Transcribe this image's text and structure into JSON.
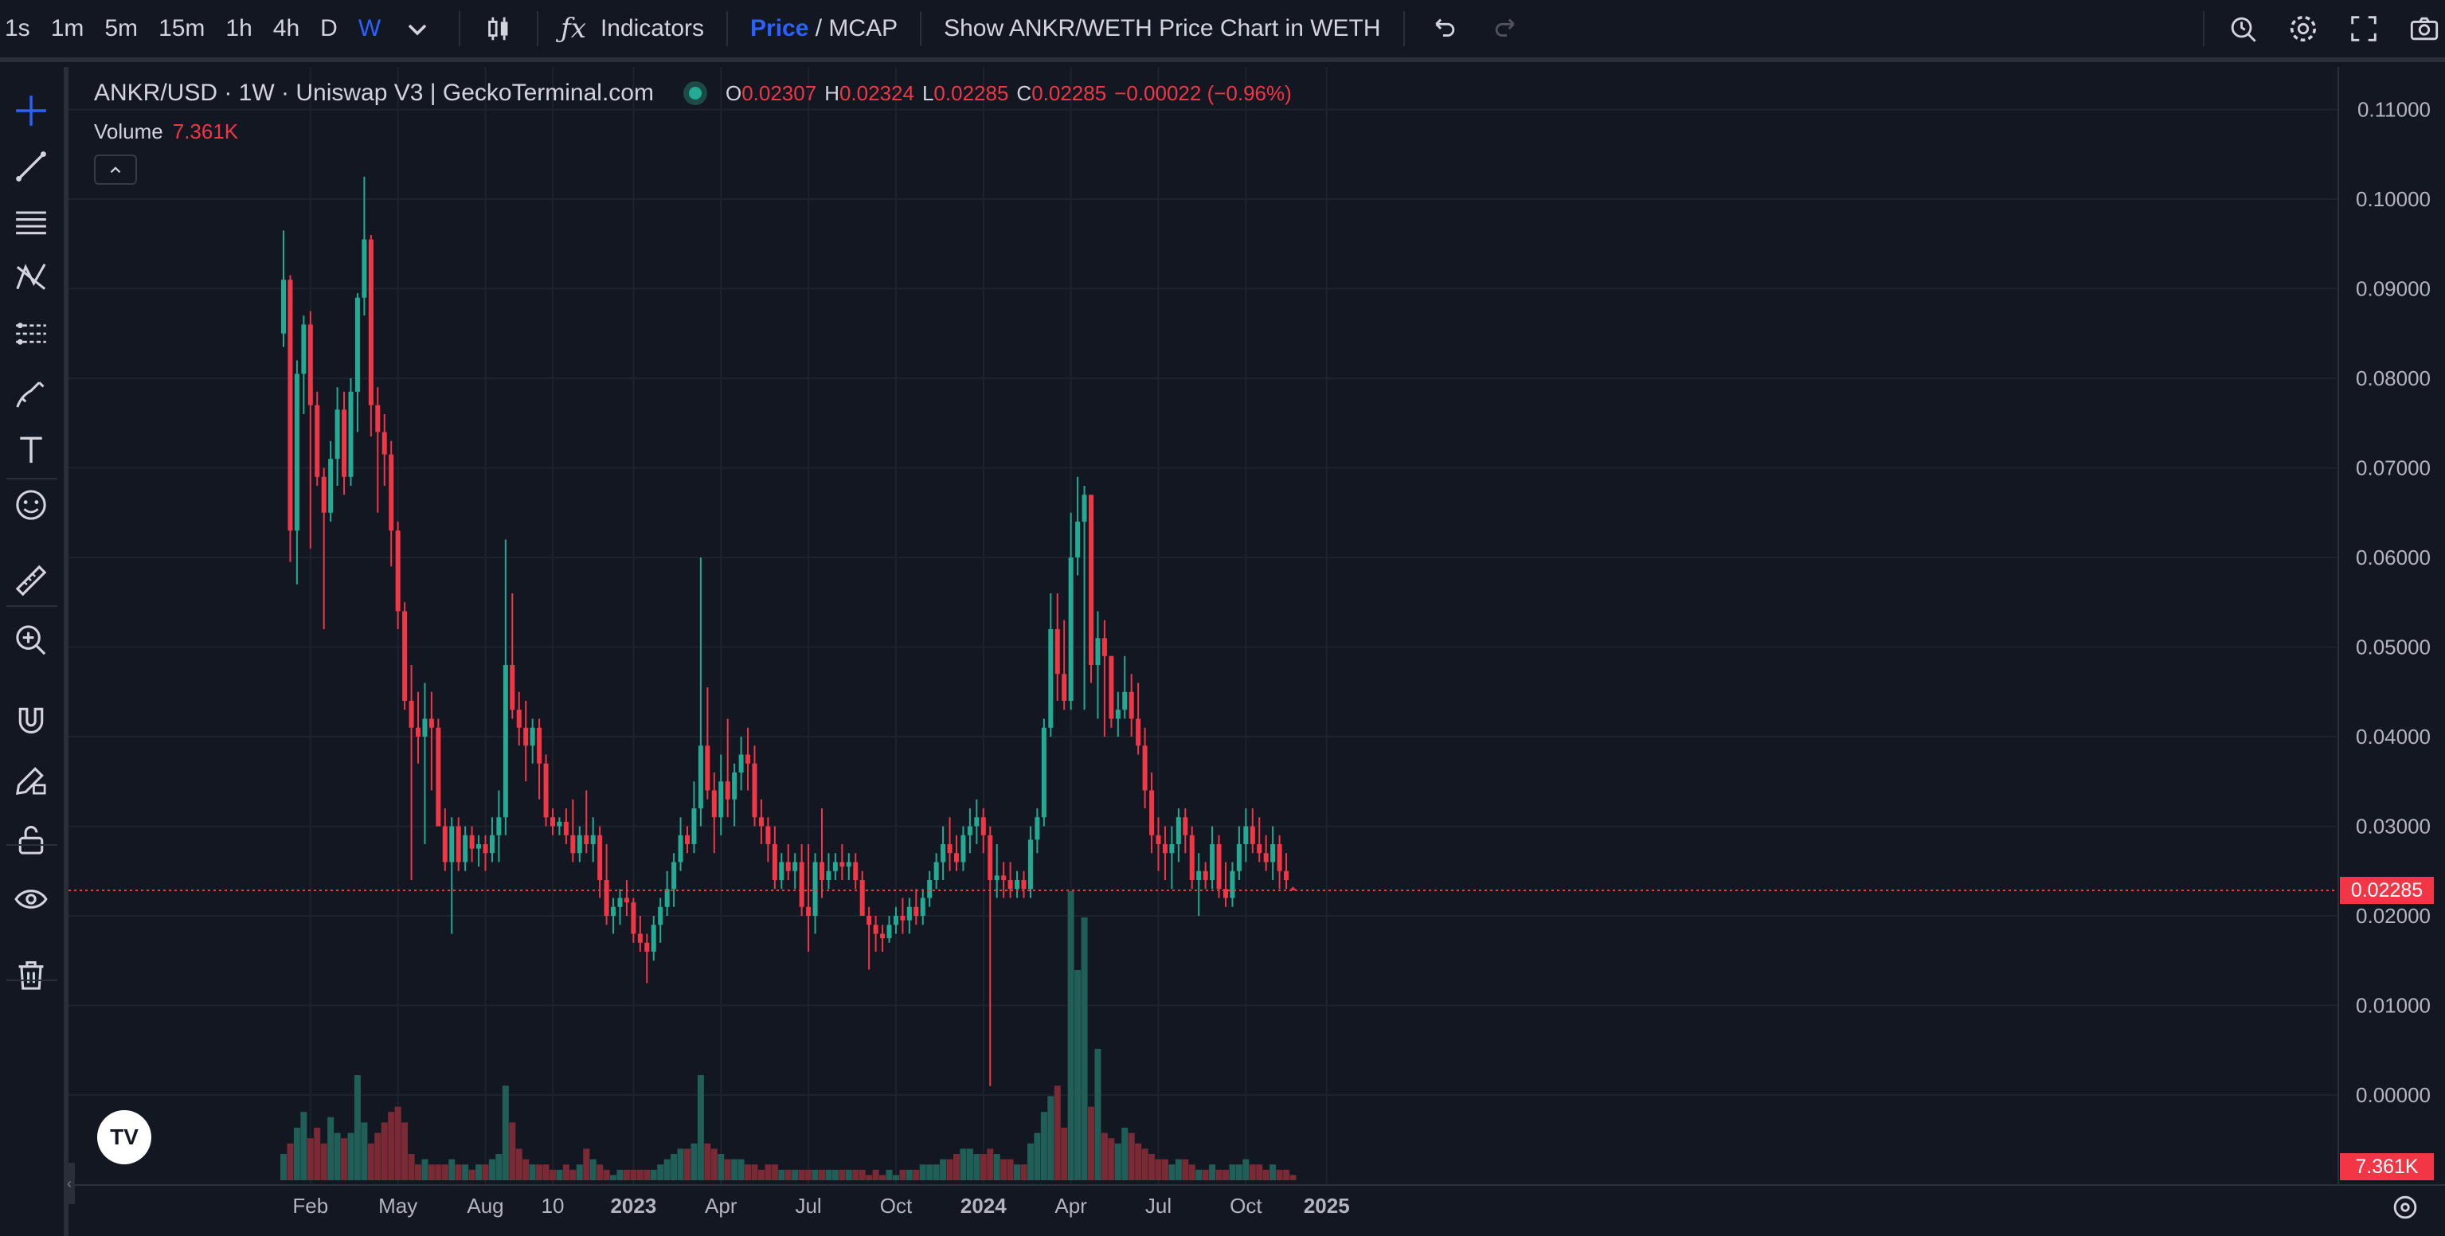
{
  "toolbar": {
    "timeframes": [
      "1s",
      "1m",
      "5m",
      "15m",
      "1h",
      "4h",
      "D",
      "W"
    ],
    "active_timeframe": "W",
    "indicators_label": "Indicators",
    "price_label": "Price",
    "mcap_label": " / MCAP",
    "weth_label": "Show ANKR/WETH Price Chart in WETH"
  },
  "left_tools": [
    "crosshair-icon",
    "trendline-icon",
    "fib-lines-icon",
    "pattern-icon",
    "prediction-icon",
    "brush-icon",
    "text-icon",
    "emoji-icon",
    "ruler-icon",
    "zoom-in-icon",
    "magnet-icon",
    "lock-drawings-icon",
    "unlock-icon",
    "eye-icon",
    "trash-icon"
  ],
  "legend": {
    "title": "ANKR/USD · 1W · Uniswap V3 | GeckoTerminal.com",
    "open_label": "O",
    "open": "0.02307",
    "high_label": "H",
    "high": "0.02324",
    "low_label": "L",
    "low": "0.02285",
    "close_label": "C",
    "close": "0.02285",
    "change": "−0.00022 (−0.96%)",
    "volume_label": "Volume",
    "volume_value": "7.361K"
  },
  "last_price_tag": "0.02285",
  "volume_tag": "7.361K",
  "logo_text": "TV",
  "colors": {
    "up": "#22ab94",
    "down": "#f23645",
    "up_vol": "#1f5f57",
    "down_vol": "#7a2a35",
    "bg": "#131722",
    "grid": "#1e222d"
  },
  "chart_data": {
    "type": "candlestick",
    "price_axis": {
      "min": -0.002,
      "max": 0.113,
      "ticks": [
        "0.11000",
        "0.10000",
        "0.09000",
        "0.08000",
        "0.07000",
        "0.06000",
        "0.05000",
        "0.04000",
        "0.03000",
        "0.02000",
        "0.01000",
        "0.00000"
      ],
      "tick_values": [
        0.11,
        0.1,
        0.09,
        0.08,
        0.07,
        0.06,
        0.05,
        0.04,
        0.03,
        0.02,
        0.01,
        0.0
      ]
    },
    "time_axis": {
      "labels": [
        {
          "text": "Feb",
          "week": 4,
          "bold": false
        },
        {
          "text": "May",
          "week": 17,
          "bold": false
        },
        {
          "text": "Aug",
          "week": 30,
          "bold": false
        },
        {
          "text": "10",
          "week": 40,
          "bold": false
        },
        {
          "text": "2023",
          "week": 52,
          "bold": true
        },
        {
          "text": "Apr",
          "week": 65,
          "bold": false
        },
        {
          "text": "Jul",
          "week": 78,
          "bold": false
        },
        {
          "text": "Oct",
          "week": 91,
          "bold": false
        },
        {
          "text": "2024",
          "week": 104,
          "bold": true
        },
        {
          "text": "Apr",
          "week": 117,
          "bold": false
        },
        {
          "text": "Jul",
          "week": 130,
          "bold": false
        },
        {
          "text": "Oct",
          "week": 143,
          "bold": false
        },
        {
          "text": "2025",
          "week": 155,
          "bold": true
        }
      ]
    },
    "last_price": 0.02285,
    "candles": [
      [
        0.085,
        0.0965,
        0.0835,
        0.091,
        5
      ],
      [
        0.091,
        0.0915,
        0.0595,
        0.063,
        7
      ],
      [
        0.063,
        0.082,
        0.057,
        0.0805,
        10
      ],
      [
        0.0805,
        0.087,
        0.076,
        0.086,
        13
      ],
      [
        0.086,
        0.0875,
        0.061,
        0.077,
        8
      ],
      [
        0.077,
        0.0785,
        0.068,
        0.069,
        10
      ],
      [
        0.069,
        0.07,
        0.052,
        0.065,
        7
      ],
      [
        0.065,
        0.073,
        0.064,
        0.071,
        12
      ],
      [
        0.071,
        0.079,
        0.068,
        0.0765,
        9
      ],
      [
        0.0765,
        0.0785,
        0.067,
        0.069,
        8
      ],
      [
        0.069,
        0.08,
        0.068,
        0.0785,
        9
      ],
      [
        0.0785,
        0.0895,
        0.074,
        0.089,
        20
      ],
      [
        0.089,
        0.1025,
        0.087,
        0.0955,
        11
      ],
      [
        0.0955,
        0.096,
        0.0735,
        0.077,
        7
      ],
      [
        0.077,
        0.079,
        0.065,
        0.074,
        9
      ],
      [
        0.074,
        0.076,
        0.068,
        0.0715,
        11
      ],
      [
        0.0715,
        0.073,
        0.059,
        0.063,
        13
      ],
      [
        0.063,
        0.064,
        0.052,
        0.054,
        14
      ],
      [
        0.054,
        0.055,
        0.043,
        0.044,
        11
      ],
      [
        0.044,
        0.048,
        0.024,
        0.041,
        5
      ],
      [
        0.041,
        0.045,
        0.037,
        0.04,
        3
      ],
      [
        0.04,
        0.046,
        0.028,
        0.042,
        4
      ],
      [
        0.042,
        0.045,
        0.034,
        0.041,
        3
      ],
      [
        0.041,
        0.042,
        0.031,
        0.03,
        3
      ],
      [
        0.03,
        0.032,
        0.025,
        0.026,
        3
      ],
      [
        0.026,
        0.031,
        0.018,
        0.03,
        4
      ],
      [
        0.03,
        0.031,
        0.025,
        0.026,
        3
      ],
      [
        0.026,
        0.03,
        0.025,
        0.029,
        3
      ],
      [
        0.029,
        0.03,
        0.026,
        0.0275,
        2
      ],
      [
        0.0275,
        0.029,
        0.0255,
        0.028,
        3
      ],
      [
        0.028,
        0.029,
        0.025,
        0.027,
        3
      ],
      [
        0.027,
        0.031,
        0.026,
        0.029,
        4
      ],
      [
        0.029,
        0.034,
        0.026,
        0.031,
        5
      ],
      [
        0.031,
        0.062,
        0.029,
        0.048,
        18
      ],
      [
        0.048,
        0.056,
        0.042,
        0.043,
        11
      ],
      [
        0.043,
        0.045,
        0.039,
        0.041,
        6
      ],
      [
        0.041,
        0.044,
        0.035,
        0.039,
        4
      ],
      [
        0.039,
        0.042,
        0.037,
        0.041,
        3
      ],
      [
        0.041,
        0.042,
        0.033,
        0.037,
        3
      ],
      [
        0.037,
        0.038,
        0.03,
        0.031,
        3
      ],
      [
        0.031,
        0.032,
        0.029,
        0.03,
        2
      ],
      [
        0.03,
        0.031,
        0.029,
        0.0305,
        2
      ],
      [
        0.0305,
        0.032,
        0.028,
        0.029,
        3
      ],
      [
        0.029,
        0.033,
        0.026,
        0.027,
        2
      ],
      [
        0.027,
        0.03,
        0.026,
        0.029,
        3
      ],
      [
        0.029,
        0.034,
        0.027,
        0.028,
        6
      ],
      [
        0.028,
        0.031,
        0.026,
        0.029,
        4
      ],
      [
        0.029,
        0.03,
        0.022,
        0.024,
        3
      ],
      [
        0.024,
        0.028,
        0.019,
        0.02,
        2
      ],
      [
        0.02,
        0.022,
        0.018,
        0.021,
        1
      ],
      [
        0.021,
        0.023,
        0.019,
        0.022,
        2
      ],
      [
        0.022,
        0.024,
        0.02,
        0.0215,
        2
      ],
      [
        0.0215,
        0.022,
        0.017,
        0.018,
        2
      ],
      [
        0.018,
        0.02,
        0.016,
        0.017,
        2
      ],
      [
        0.017,
        0.018,
        0.0125,
        0.016,
        2
      ],
      [
        0.016,
        0.02,
        0.015,
        0.019,
        2
      ],
      [
        0.019,
        0.022,
        0.017,
        0.021,
        3
      ],
      [
        0.021,
        0.025,
        0.02,
        0.023,
        4
      ],
      [
        0.023,
        0.027,
        0.021,
        0.026,
        5
      ],
      [
        0.026,
        0.031,
        0.025,
        0.029,
        6
      ],
      [
        0.029,
        0.03,
        0.027,
        0.028,
        6
      ],
      [
        0.028,
        0.035,
        0.027,
        0.032,
        7
      ],
      [
        0.032,
        0.06,
        0.03,
        0.039,
        20
      ],
      [
        0.039,
        0.0455,
        0.033,
        0.034,
        7
      ],
      [
        0.034,
        0.036,
        0.027,
        0.031,
        6
      ],
      [
        0.031,
        0.038,
        0.029,
        0.035,
        5
      ],
      [
        0.035,
        0.042,
        0.031,
        0.033,
        4
      ],
      [
        0.033,
        0.037,
        0.03,
        0.036,
        4
      ],
      [
        0.036,
        0.04,
        0.034,
        0.038,
        4
      ],
      [
        0.038,
        0.041,
        0.034,
        0.037,
        3
      ],
      [
        0.037,
        0.039,
        0.03,
        0.031,
        3
      ],
      [
        0.031,
        0.033,
        0.028,
        0.03,
        2
      ],
      [
        0.03,
        0.031,
        0.026,
        0.028,
        3
      ],
      [
        0.028,
        0.03,
        0.023,
        0.024,
        3
      ],
      [
        0.024,
        0.027,
        0.023,
        0.026,
        2
      ],
      [
        0.026,
        0.028,
        0.024,
        0.025,
        2
      ],
      [
        0.025,
        0.027,
        0.023,
        0.026,
        2
      ],
      [
        0.026,
        0.028,
        0.02,
        0.021,
        2
      ],
      [
        0.021,
        0.028,
        0.016,
        0.02,
        2
      ],
      [
        0.02,
        0.027,
        0.018,
        0.026,
        2
      ],
      [
        0.026,
        0.032,
        0.022,
        0.024,
        2
      ],
      [
        0.024,
        0.027,
        0.023,
        0.025,
        2
      ],
      [
        0.025,
        0.027,
        0.024,
        0.026,
        2
      ],
      [
        0.026,
        0.028,
        0.024,
        0.0255,
        2
      ],
      [
        0.0255,
        0.027,
        0.024,
        0.026,
        2
      ],
      [
        0.026,
        0.027,
        0.023,
        0.024,
        2
      ],
      [
        0.024,
        0.025,
        0.02,
        0.02,
        2
      ],
      [
        0.02,
        0.021,
        0.014,
        0.019,
        1
      ],
      [
        0.019,
        0.02,
        0.016,
        0.018,
        2
      ],
      [
        0.018,
        0.019,
        0.016,
        0.0175,
        1
      ],
      [
        0.0175,
        0.02,
        0.017,
        0.019,
        2
      ],
      [
        0.019,
        0.021,
        0.018,
        0.02,
        1
      ],
      [
        0.02,
        0.022,
        0.018,
        0.0195,
        2
      ],
      [
        0.0195,
        0.022,
        0.018,
        0.021,
        2
      ],
      [
        0.021,
        0.023,
        0.019,
        0.02,
        2
      ],
      [
        0.02,
        0.023,
        0.019,
        0.022,
        3
      ],
      [
        0.022,
        0.025,
        0.021,
        0.024,
        3
      ],
      [
        0.024,
        0.027,
        0.023,
        0.026,
        3
      ],
      [
        0.026,
        0.03,
        0.024,
        0.028,
        4
      ],
      [
        0.028,
        0.031,
        0.025,
        0.027,
        4
      ],
      [
        0.027,
        0.029,
        0.025,
        0.026,
        5
      ],
      [
        0.026,
        0.03,
        0.025,
        0.029,
        6
      ],
      [
        0.029,
        0.032,
        0.027,
        0.03,
        6
      ],
      [
        0.03,
        0.033,
        0.028,
        0.031,
        5
      ],
      [
        0.031,
        0.032,
        0.027,
        0.029,
        5
      ],
      [
        0.029,
        0.03,
        0.001,
        0.024,
        6
      ],
      [
        0.024,
        0.028,
        0.022,
        0.0245,
        5
      ],
      [
        0.0245,
        0.026,
        0.022,
        0.024,
        4
      ],
      [
        0.024,
        0.026,
        0.022,
        0.023,
        4
      ],
      [
        0.023,
        0.025,
        0.022,
        0.024,
        3
      ],
      [
        0.024,
        0.025,
        0.022,
        0.023,
        3
      ],
      [
        0.023,
        0.03,
        0.022,
        0.0285,
        7
      ],
      [
        0.0285,
        0.032,
        0.027,
        0.031,
        9
      ],
      [
        0.031,
        0.042,
        0.03,
        0.041,
        13
      ],
      [
        0.041,
        0.056,
        0.04,
        0.052,
        16
      ],
      [
        0.052,
        0.056,
        0.044,
        0.047,
        18
      ],
      [
        0.047,
        0.053,
        0.043,
        0.044,
        10
      ],
      [
        0.044,
        0.065,
        0.043,
        0.06,
        55
      ],
      [
        0.06,
        0.069,
        0.058,
        0.064,
        40
      ],
      [
        0.064,
        0.068,
        0.043,
        0.067,
        50
      ],
      [
        0.067,
        0.067,
        0.046,
        0.048,
        14
      ],
      [
        0.048,
        0.054,
        0.042,
        0.051,
        25
      ],
      [
        0.051,
        0.053,
        0.04,
        0.049,
        9
      ],
      [
        0.049,
        0.049,
        0.041,
        0.042,
        8
      ],
      [
        0.042,
        0.045,
        0.04,
        0.043,
        7
      ],
      [
        0.043,
        0.049,
        0.042,
        0.045,
        10
      ],
      [
        0.045,
        0.047,
        0.04,
        0.042,
        9
      ],
      [
        0.042,
        0.046,
        0.038,
        0.039,
        7
      ],
      [
        0.039,
        0.041,
        0.032,
        0.034,
        6
      ],
      [
        0.034,
        0.036,
        0.027,
        0.029,
        5
      ],
      [
        0.029,
        0.031,
        0.025,
        0.028,
        4
      ],
      [
        0.028,
        0.03,
        0.024,
        0.027,
        4
      ],
      [
        0.027,
        0.03,
        0.023,
        0.028,
        3
      ],
      [
        0.028,
        0.032,
        0.026,
        0.031,
        4
      ],
      [
        0.031,
        0.032,
        0.027,
        0.029,
        4
      ],
      [
        0.029,
        0.03,
        0.023,
        0.024,
        3
      ],
      [
        0.024,
        0.027,
        0.02,
        0.025,
        2
      ],
      [
        0.025,
        0.026,
        0.023,
        0.024,
        2
      ],
      [
        0.024,
        0.03,
        0.023,
        0.028,
        3
      ],
      [
        0.028,
        0.029,
        0.022,
        0.023,
        2
      ],
      [
        0.023,
        0.026,
        0.021,
        0.022,
        2
      ],
      [
        0.022,
        0.026,
        0.021,
        0.025,
        3
      ],
      [
        0.025,
        0.03,
        0.024,
        0.028,
        3
      ],
      [
        0.028,
        0.032,
        0.026,
        0.03,
        4
      ],
      [
        0.03,
        0.032,
        0.027,
        0.028,
        3
      ],
      [
        0.028,
        0.031,
        0.026,
        0.027,
        3
      ],
      [
        0.027,
        0.029,
        0.025,
        0.026,
        2
      ],
      [
        0.026,
        0.03,
        0.024,
        0.028,
        3
      ],
      [
        0.028,
        0.029,
        0.023,
        0.025,
        2
      ],
      [
        0.025,
        0.027,
        0.023,
        0.024,
        2
      ],
      [
        0.02307,
        0.02324,
        0.02285,
        0.02285,
        1
      ]
    ]
  }
}
